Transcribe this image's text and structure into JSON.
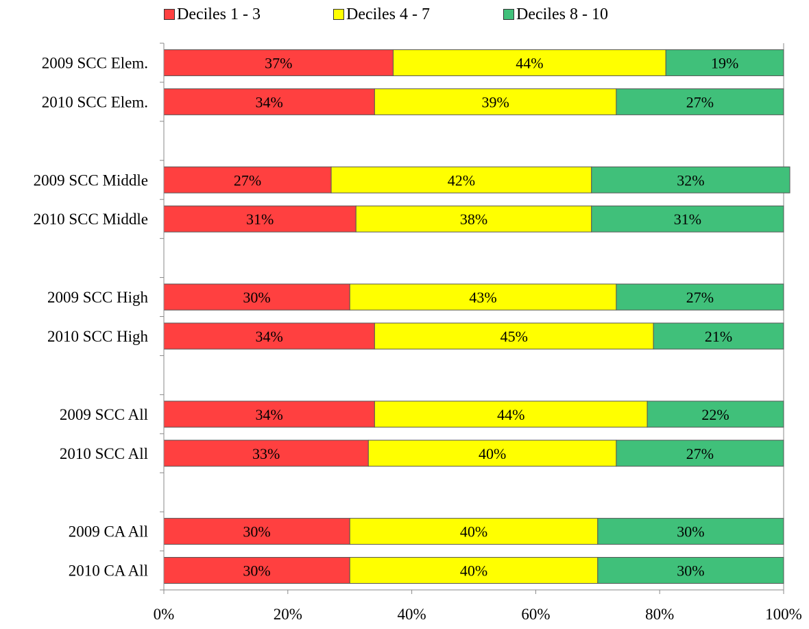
{
  "chart_data": {
    "type": "bar",
    "orientation": "horizontal",
    "stacked": true,
    "percent_stacked": true,
    "categories": [
      "2009 SCC Elem.",
      "2010 SCC Elem.",
      "2009 SCC Middle",
      "2010 SCC Middle",
      "2009 SCC High",
      "2010 SCC High",
      "2009 SCC All",
      "2010 SCC All",
      "2009 CA All",
      "2010 CA All"
    ],
    "series": [
      {
        "name": "Deciles 1 - 3",
        "color": "#FF4040",
        "values": [
          37,
          34,
          27,
          31,
          30,
          34,
          34,
          33,
          30,
          30
        ],
        "labels": [
          "37%",
          "34%",
          "27%",
          "31%",
          "30%",
          "34%",
          "34%",
          "33%",
          "30%",
          "30%"
        ]
      },
      {
        "name": "Deciles 4 - 7",
        "color": "#FFFF00",
        "values": [
          44,
          39,
          42,
          38,
          43,
          45,
          44,
          40,
          40,
          40
        ],
        "labels": [
          "44%",
          "39%",
          "42%",
          "38%",
          "43%",
          "45%",
          "44%",
          "40%",
          "40%",
          "40%"
        ]
      },
      {
        "name": "Deciles 8 - 10",
        "color": "#40C07A",
        "values": [
          19,
          27,
          32,
          31,
          27,
          21,
          22,
          27,
          30,
          30
        ],
        "labels": [
          "19%",
          "27%",
          "32%",
          "31%",
          "27%",
          "21%",
          "22%",
          "27%",
          "30%",
          "30%"
        ]
      }
    ],
    "xlim": [
      0,
      100
    ],
    "xticks": [
      "0%",
      "20%",
      "40%",
      "60%",
      "80%",
      "100%"
    ],
    "grid": false,
    "legend_position": "top"
  }
}
